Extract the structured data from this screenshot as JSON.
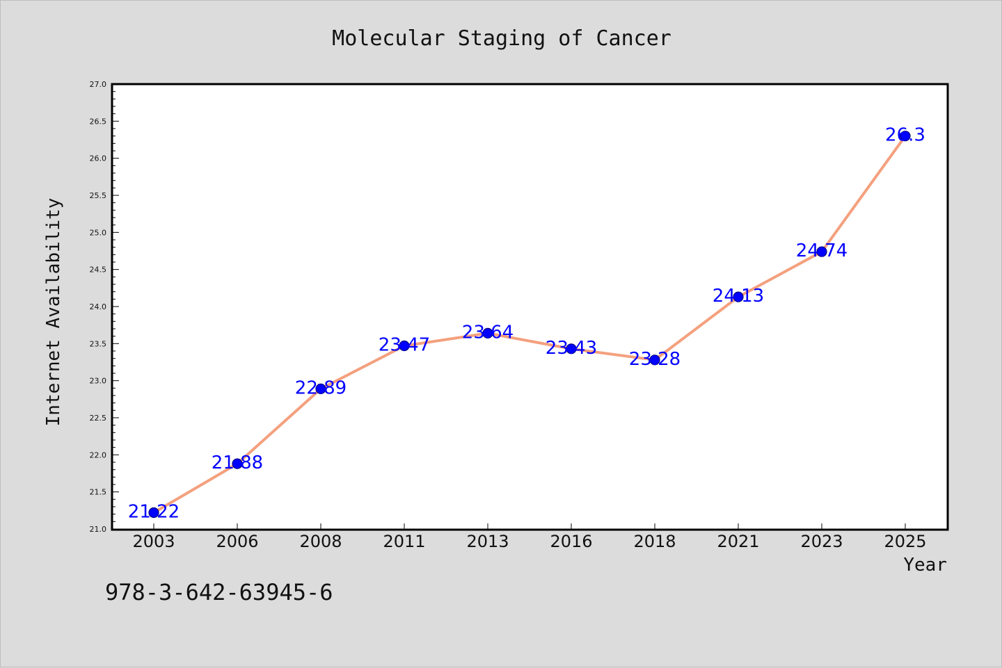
{
  "chart_data": {
    "type": "line",
    "title": "Molecular Staging of Cancer",
    "xlabel": "Year",
    "ylabel": "Internet Availability",
    "categories": [
      "2003",
      "2006",
      "2008",
      "2011",
      "2013",
      "2016",
      "2018",
      "2021",
      "2023",
      "2025"
    ],
    "series": [
      {
        "values": [
          21.22,
          21.88,
          22.89,
          23.47,
          23.64,
          23.43,
          23.28,
          24.13,
          24.74,
          26.3
        ],
        "labels": [
          "21.22",
          "21.88",
          "22.89",
          "23.47",
          "23.64",
          "23.43",
          "23.28",
          "24.13",
          "24.74",
          "26.3"
        ]
      }
    ],
    "ylim": [
      21.0,
      27.0
    ],
    "yticks": [
      "21.0",
      "21.5",
      "22.0",
      "22.5",
      "23.0",
      "23.5",
      "24.0",
      "24.5",
      "25.0",
      "25.5",
      "26.0",
      "26.5",
      "27.0"
    ],
    "grid": false,
    "legend": "none",
    "colors": {
      "line": "#f4a07e",
      "marker": "#0000ff",
      "marker_edge": "#000080",
      "data_label": "#0000ff",
      "background": "#dcdcdc",
      "plot_bg": "#ffffff"
    }
  },
  "footer": {
    "text": "978-3-642-63945-6"
  }
}
